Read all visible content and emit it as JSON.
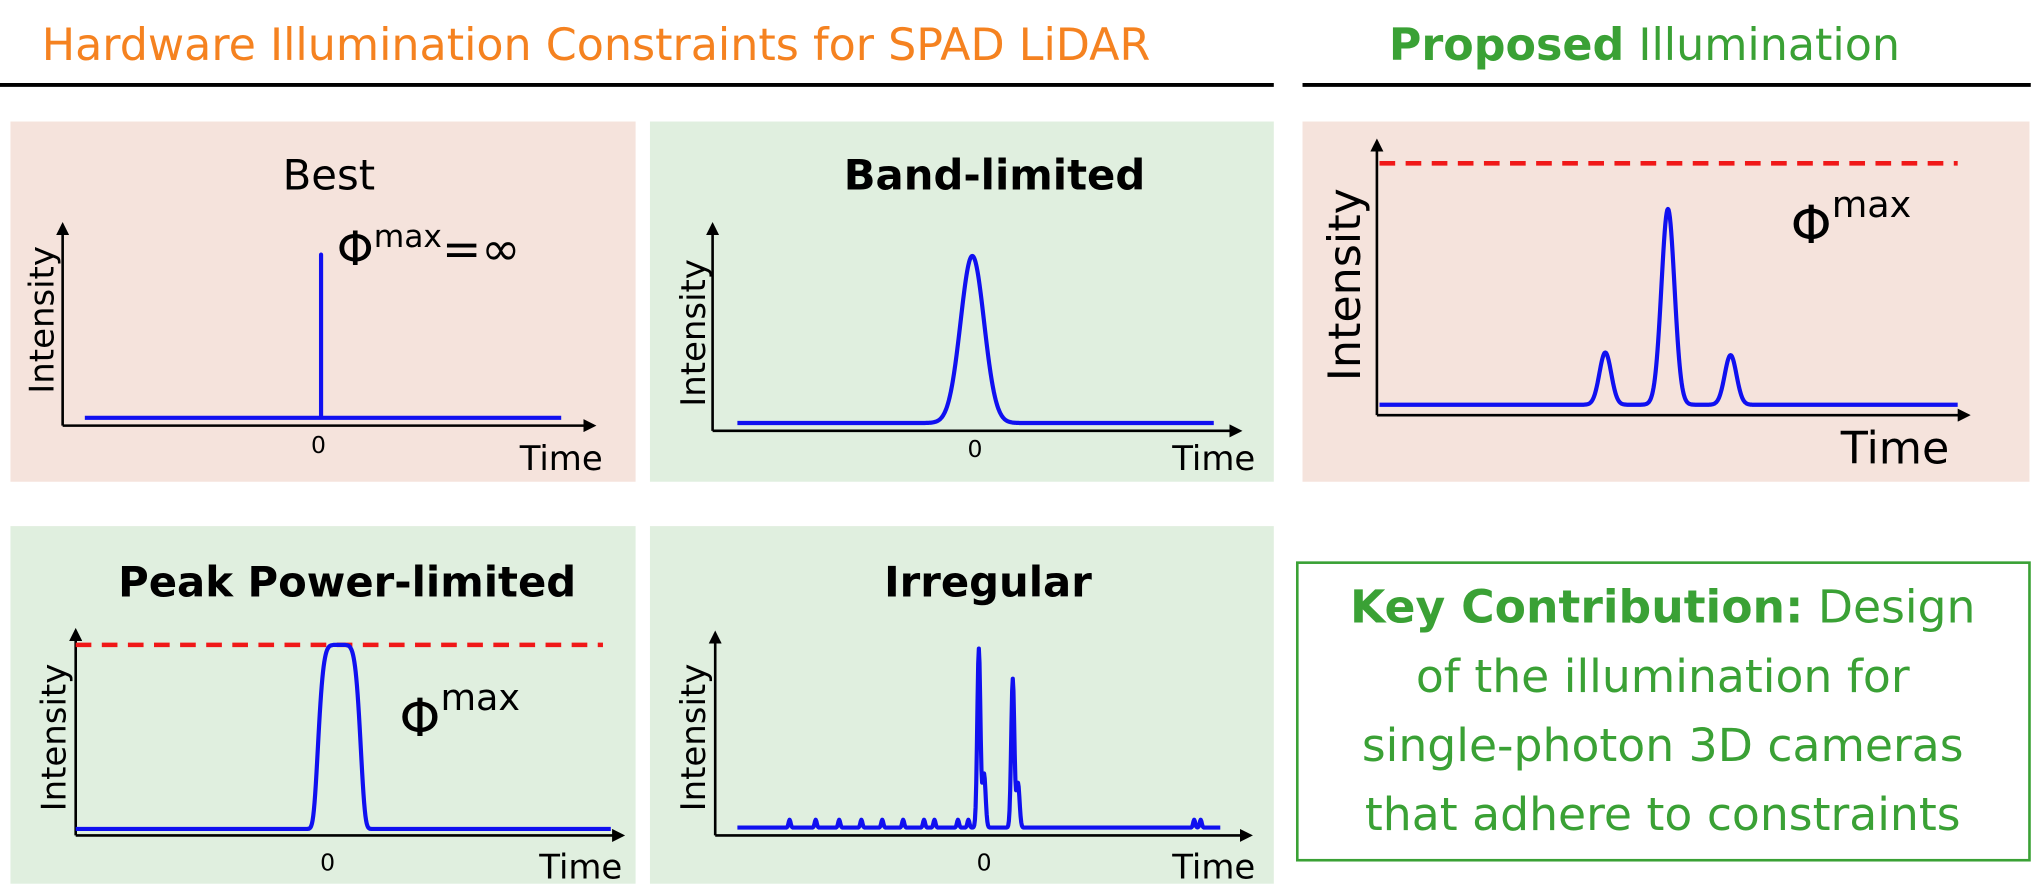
{
  "header": {
    "left": "Hardware Illumination Constraints for SPAD LiDAR",
    "right_bold": "Proposed",
    "right_rest": "Illumination"
  },
  "panels": [
    {
      "title": "Best",
      "y_label": "Intensity",
      "x_label": "Time",
      "origin": "0",
      "symbol": "Φ",
      "superscript": "max",
      "suffix": "=∞"
    },
    {
      "title": "Band-limited",
      "y_label": "Intensity",
      "x_label": "Time",
      "origin": "0"
    },
    {
      "y_label": "Intensity",
      "x_label": "Time",
      "symbol": "Φ",
      "superscript": "max"
    },
    {
      "title": "Peak Power-limited",
      "y_label": "Intensity",
      "x_label": "Time",
      "origin": "0",
      "symbol": "Φ",
      "superscript": "max"
    },
    {
      "title": "Irregular",
      "y_label": "Intensity",
      "x_label": "Time",
      "origin": "0"
    }
  ],
  "key_contribution": {
    "label": "Key Contribution:",
    "lines": [
      "Design",
      "of the illumination for",
      "single-photon 3D cameras",
      "that adhere to constraints"
    ]
  }
}
